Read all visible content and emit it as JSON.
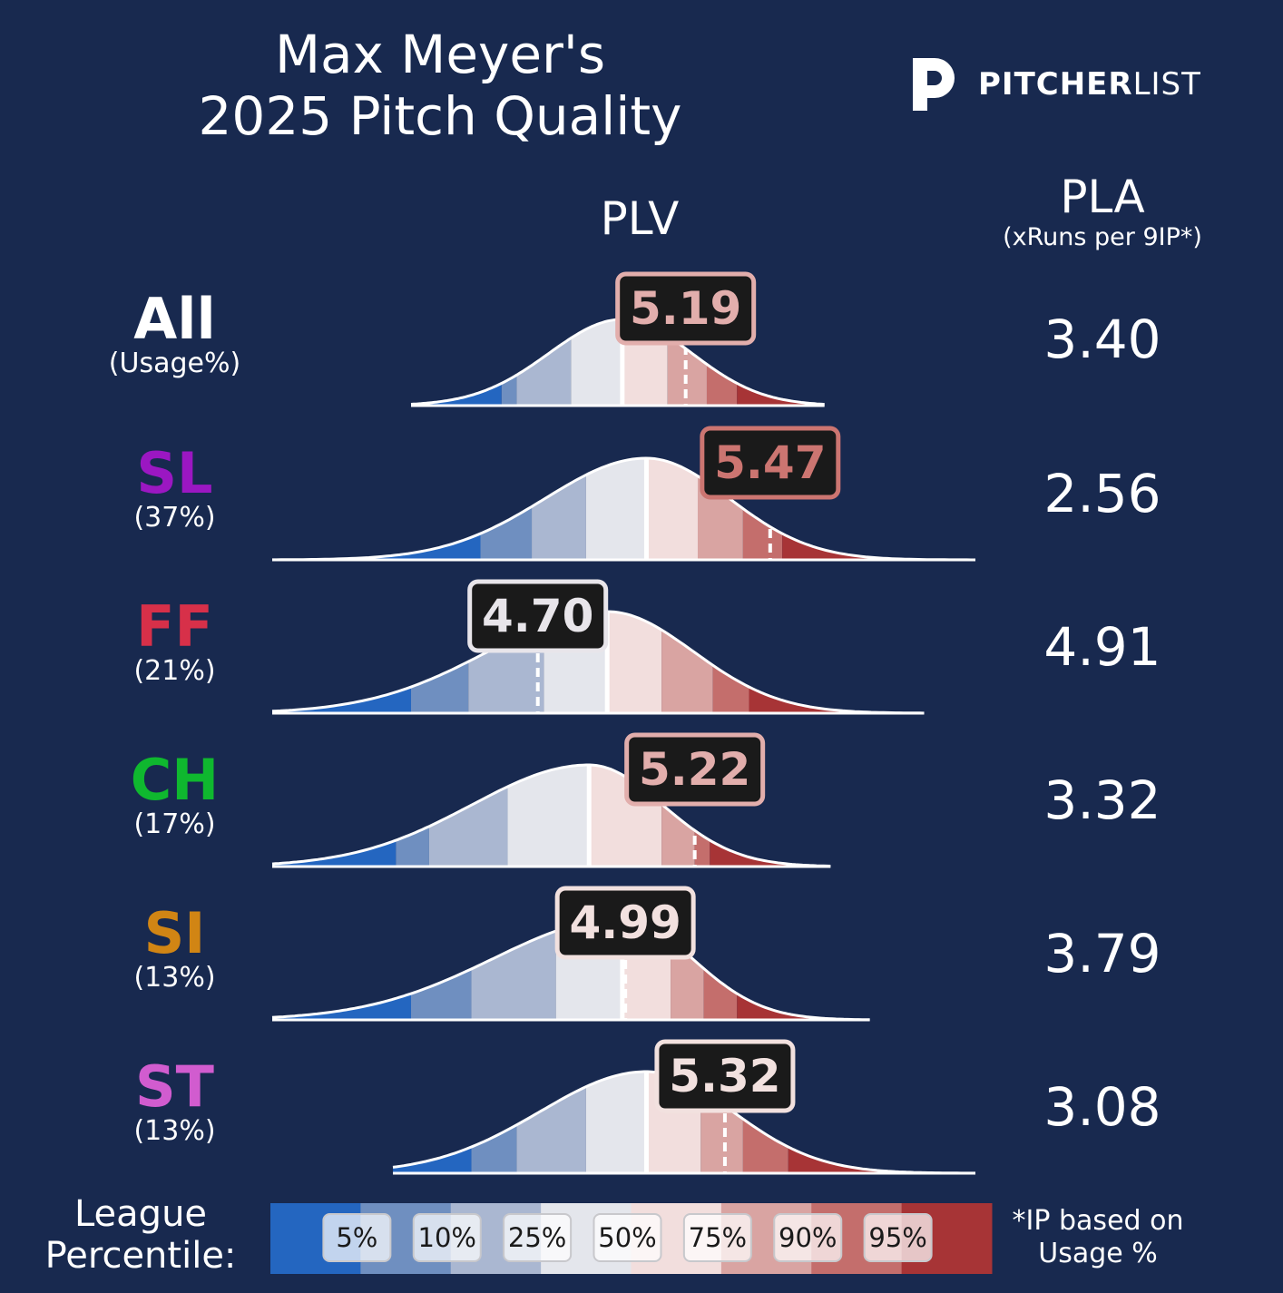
{
  "title_line1": "Max Meyer's",
  "title_line2": "2025 Pitch Quality",
  "logo_text_bold": "PITCHER",
  "logo_text_light": "LIST",
  "plv_header": "PLV",
  "pla_header": "PLA",
  "pla_subheader": "(xRuns per 9IP*)",
  "legend_title_line1": "League",
  "legend_title_line2": "Percentile:",
  "footnote_line1": "*IP based on",
  "footnote_line2": "Usage %",
  "colors": {
    "background": "#18294f",
    "percentile_bands": [
      "#2466c0",
      "#6f8fc0",
      "#aab7d1",
      "#e4e6ec",
      "#f2dedd",
      "#d9a4a2",
      "#c46e6c",
      "#a73436"
    ]
  },
  "chart_data": {
    "type": "area",
    "description_style": "ridgeline distributions shaded by league percentile, with pitcher PLV marked by dashed line and value box",
    "percentile_legend": [
      "5%",
      "10%",
      "25%",
      "50%",
      "75%",
      "90%",
      "95%"
    ],
    "rows": [
      {
        "pitch": "All",
        "usage": "(Usage%)",
        "name_color": "#ffffff",
        "plv": "5.19",
        "pla": "3.40",
        "label_color": "#e2aeac",
        "x_range": [
          4.28,
          5.65
        ],
        "percentiles": [
          4.58,
          4.63,
          4.81,
          4.98,
          5.13,
          5.26,
          5.36
        ],
        "density_scale": 1.0
      },
      {
        "pitch": "SL",
        "usage": "(37%)",
        "name_color": "#9b17c2",
        "plv": "5.47",
        "pla": "2.56",
        "label_color": "#cc7571",
        "x_range": [
          3.82,
          6.15
        ],
        "percentiles": [
          4.51,
          4.68,
          4.86,
          5.06,
          5.23,
          5.38,
          5.51
        ],
        "density_scale": 1.0
      },
      {
        "pitch": "FF",
        "usage": "(21%)",
        "name_color": "#d73049",
        "plv": "4.70",
        "pla": "4.91",
        "label_color": "#e8e5ea",
        "x_range": [
          3.82,
          5.98
        ],
        "percentiles": [
          4.28,
          4.47,
          4.72,
          4.93,
          5.11,
          5.28,
          5.4
        ],
        "density_scale": 1.0
      },
      {
        "pitch": "CH",
        "usage": "(17%)",
        "name_color": "#0fb82f",
        "plv": "5.22",
        "pla": "3.32",
        "label_color": "#e2aeac",
        "x_range": [
          3.82,
          5.67
        ],
        "percentiles": [
          4.23,
          4.34,
          4.6,
          4.87,
          5.11,
          5.22,
          5.27
        ],
        "density_scale": 1.0
      },
      {
        "pitch": "SI",
        "usage": "(13%)",
        "name_color": "#d18514",
        "plv": "4.99",
        "pla": "3.79",
        "label_color": "#f2e1df",
        "x_range": [
          3.82,
          5.8
        ],
        "percentiles": [
          4.28,
          4.48,
          4.76,
          4.98,
          5.14,
          5.25,
          5.36
        ],
        "density_scale": 1.0
      },
      {
        "pitch": "ST",
        "usage": "(13%)",
        "name_color": "#d15ccf",
        "plv": "5.32",
        "pla": "3.08",
        "label_color": "#f2e1df",
        "x_range": [
          4.22,
          6.15
        ],
        "percentiles": [
          4.48,
          4.63,
          4.86,
          5.06,
          5.24,
          5.38,
          5.53
        ],
        "density_scale": 1.0
      }
    ]
  }
}
